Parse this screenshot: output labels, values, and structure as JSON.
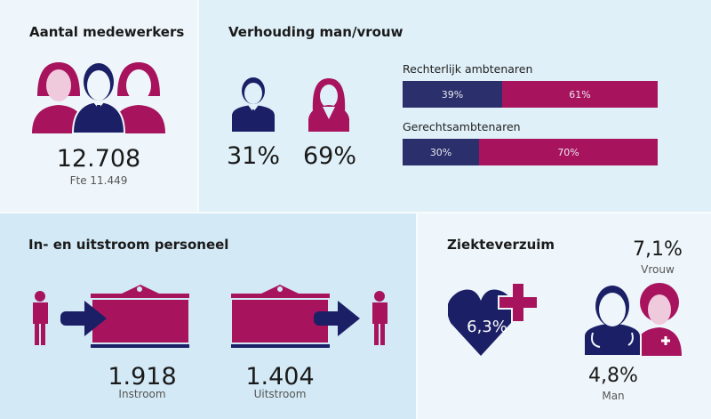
{
  "colors": {
    "navy": "#1b1f66",
    "magenta": "#a8135e",
    "pink_light": "#efc9dc"
  },
  "staff": {
    "title": "Aantal medewerkers",
    "count": "12.708",
    "fte": "Fte 11.449",
    "icon": "group-people-icon"
  },
  "gender": {
    "title": "Verhouding man/vrouw",
    "men": "31%",
    "women": "69%",
    "man_icon": "man-icon",
    "woman_icon": "woman-icon"
  },
  "flow": {
    "title": "In- en uitstroom personeel",
    "in_value": "1.918",
    "in_label": "Instroom",
    "out_value": "1.404",
    "out_label": "Uitstroom"
  },
  "sick": {
    "title": "Ziekteverzuim",
    "total": "6,3%",
    "women_value": "7,1%",
    "women_label": "Vrouw",
    "men_value": "4,8%",
    "men_label": "Man"
  },
  "chart_data": {
    "type": "bar",
    "stacked": true,
    "orientation": "horizontal",
    "categories": [
      "Rechterlijk ambtenaren",
      "Gerechtsambtenaren"
    ],
    "series": [
      {
        "values": [
          39,
          30
        ],
        "labels": [
          "39%",
          "30%"
        ],
        "color": "#2b2f6b"
      },
      {
        "values": [
          61,
          70
        ],
        "labels": [
          "61%",
          "70%"
        ],
        "color": "#a8135e"
      }
    ],
    "xlim": [
      0,
      100
    ]
  }
}
